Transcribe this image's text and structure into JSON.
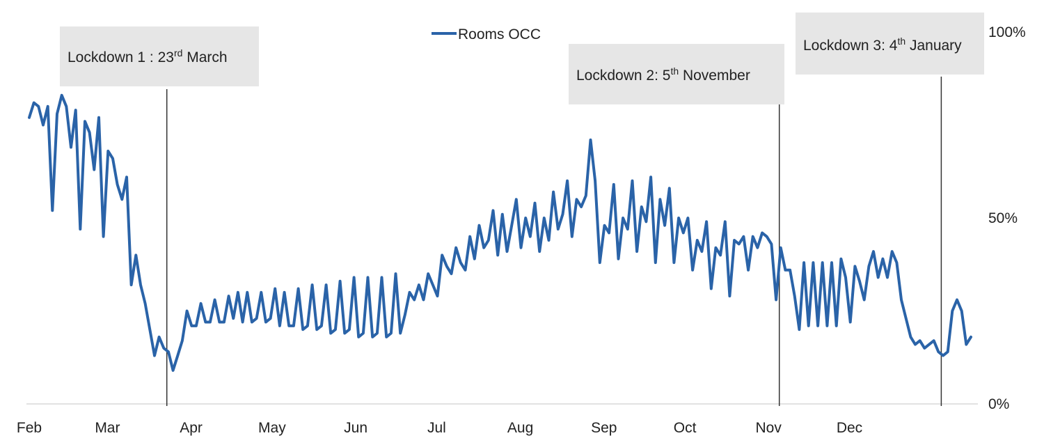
{
  "chart_data": {
    "type": "line",
    "series": [
      {
        "name": "Rooms OCC",
        "color": "#2a63a8",
        "values": [
          0.77,
          0.81,
          0.8,
          0.75,
          0.8,
          0.52,
          0.78,
          0.83,
          0.8,
          0.69,
          0.79,
          0.47,
          0.76,
          0.73,
          0.63,
          0.77,
          0.45,
          0.68,
          0.66,
          0.59,
          0.55,
          0.61,
          0.32,
          0.4,
          0.32,
          0.27,
          0.2,
          0.13,
          0.18,
          0.15,
          0.14,
          0.09,
          0.13,
          0.17,
          0.25,
          0.21,
          0.21,
          0.27,
          0.22,
          0.22,
          0.28,
          0.22,
          0.22,
          0.29,
          0.23,
          0.3,
          0.22,
          0.3,
          0.22,
          0.23,
          0.3,
          0.22,
          0.23,
          0.31,
          0.21,
          0.3,
          0.21,
          0.21,
          0.31,
          0.2,
          0.21,
          0.32,
          0.2,
          0.21,
          0.32,
          0.19,
          0.2,
          0.33,
          0.19,
          0.2,
          0.34,
          0.18,
          0.19,
          0.34,
          0.18,
          0.19,
          0.34,
          0.18,
          0.19,
          0.35,
          0.19,
          0.24,
          0.3,
          0.28,
          0.32,
          0.28,
          0.35,
          0.32,
          0.29,
          0.4,
          0.37,
          0.35,
          0.42,
          0.38,
          0.36,
          0.45,
          0.39,
          0.48,
          0.42,
          0.44,
          0.52,
          0.4,
          0.51,
          0.41,
          0.48,
          0.55,
          0.42,
          0.5,
          0.45,
          0.54,
          0.41,
          0.5,
          0.44,
          0.57,
          0.47,
          0.51,
          0.6,
          0.45,
          0.55,
          0.53,
          0.56,
          0.71,
          0.6,
          0.38,
          0.48,
          0.46,
          0.59,
          0.39,
          0.5,
          0.47,
          0.6,
          0.41,
          0.53,
          0.49,
          0.61,
          0.38,
          0.55,
          0.48,
          0.58,
          0.38,
          0.5,
          0.46,
          0.5,
          0.36,
          0.44,
          0.41,
          0.49,
          0.31,
          0.42,
          0.4,
          0.49,
          0.29,
          0.44,
          0.43,
          0.45,
          0.36,
          0.45,
          0.42,
          0.46,
          0.45,
          0.43,
          0.28,
          0.42,
          0.36,
          0.36,
          0.29,
          0.2,
          0.38,
          0.21,
          0.38,
          0.21,
          0.38,
          0.21,
          0.38,
          0.21,
          0.39,
          0.34,
          0.22,
          0.37,
          0.33,
          0.28,
          0.37,
          0.41,
          0.34,
          0.39,
          0.34,
          0.41,
          0.38,
          0.28,
          0.23,
          0.18,
          0.16,
          0.17,
          0.15,
          0.16,
          0.17,
          0.14,
          0.13,
          0.14,
          0.25,
          0.28,
          0.25,
          0.16,
          0.18
        ],
        "x_range": [
          "2020-02-01",
          "2021-01-15"
        ]
      }
    ],
    "x_ticks": [
      "Feb",
      "Mar",
      "Apr",
      "May",
      "Jun",
      "Jul",
      "Aug",
      "Sep",
      "Oct",
      "Nov",
      "Dec"
    ],
    "y_ticks": [
      "0%",
      "50%",
      "100%"
    ],
    "ylim": [
      0,
      1
    ],
    "y_axis_side": "right",
    "legend": {
      "position": "top-center",
      "label": "Rooms OCC"
    },
    "annotations": [
      {
        "pre": "Lockdown 1 : 23",
        "sup": "rd",
        "post": " March",
        "date": "2020-03-23"
      },
      {
        "pre": "Lockdown 2: 5",
        "sup": "th",
        "post": " November",
        "date": "2020-11-05"
      },
      {
        "pre": "Lockdown 3: 4",
        "sup": "th",
        "post": " January",
        "date": "2021-01-04"
      }
    ],
    "annotation_box_color": "#e6e6e6",
    "grid": false
  }
}
